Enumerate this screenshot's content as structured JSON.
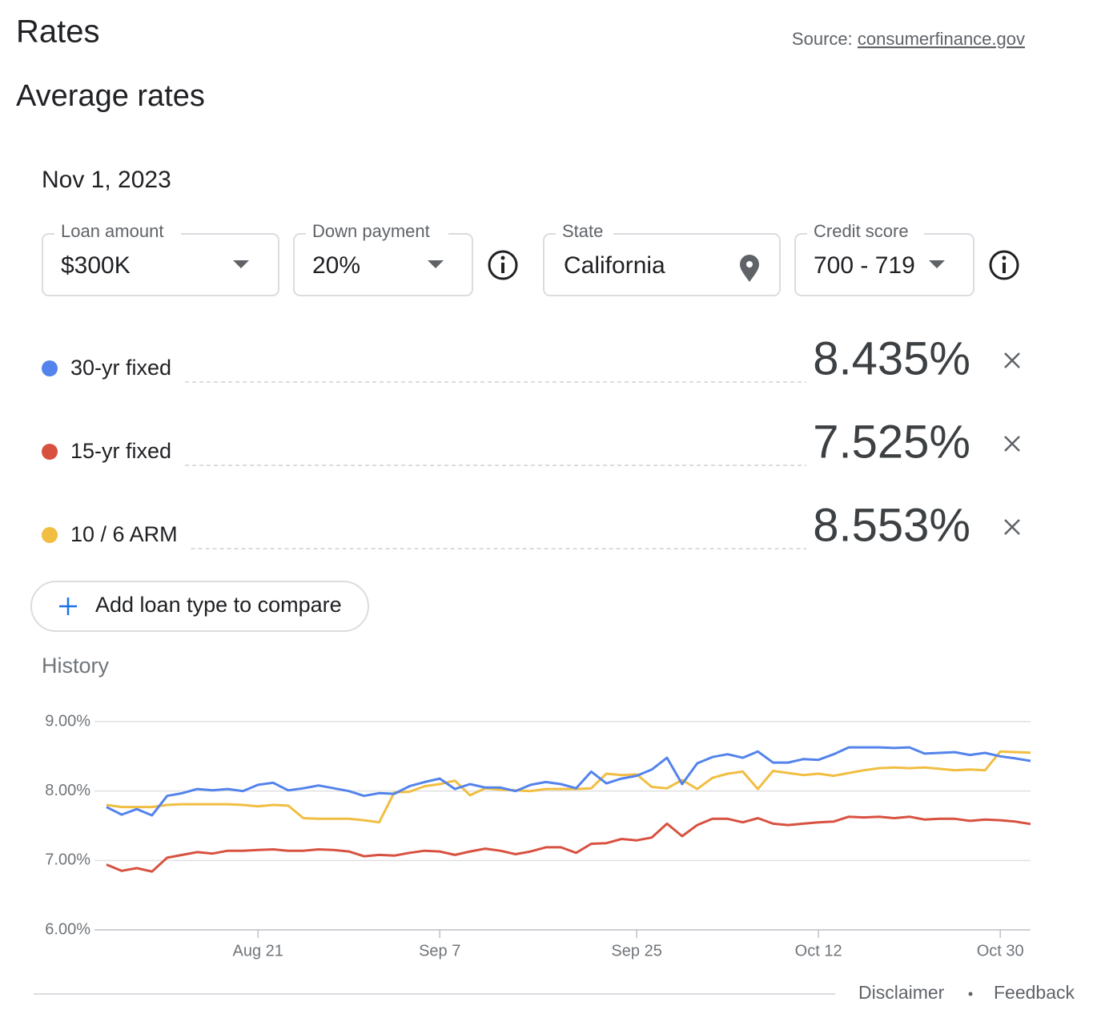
{
  "header": {
    "title": "Rates",
    "source_label": "Source:",
    "source_link": "consumerfinance.gov",
    "subtitle": "Average rates",
    "date": "Nov 1, 2023"
  },
  "filters": [
    {
      "label": "Loan amount",
      "value": "$300K"
    },
    {
      "label": "Down payment",
      "value": "20%"
    },
    {
      "label": "State",
      "value": "California"
    },
    {
      "label": "Credit score",
      "value": "700 - 719"
    }
  ],
  "add_button": "Add loan type to compare",
  "history_label": "History",
  "footer": {
    "disclaimer": "Disclaimer",
    "feedback": "Feedback"
  },
  "chart_data": {
    "type": "line",
    "categories": [
      null,
      null,
      null,
      null,
      null,
      null,
      null,
      null,
      null,
      null,
      "Aug 21",
      null,
      null,
      null,
      null,
      null,
      null,
      null,
      null,
      null,
      null,
      null,
      "Sep 7",
      null,
      null,
      null,
      null,
      null,
      null,
      null,
      null,
      null,
      null,
      null,
      null,
      "Sep 25",
      null,
      null,
      null,
      null,
      null,
      null,
      null,
      null,
      null,
      null,
      null,
      "Oct 12",
      null,
      null,
      null,
      null,
      null,
      null,
      null,
      null,
      null,
      null,
      null,
      "Oct 30",
      null,
      null
    ],
    "series": [
      {
        "name": "30-yr fixed",
        "color": "#5383ec",
        "rate": "8.435%",
        "values": [
          7.77,
          7.66,
          7.74,
          7.65,
          7.93,
          7.97,
          8.03,
          8.01,
          8.03,
          8.0,
          8.09,
          8.12,
          8.01,
          8.04,
          8.08,
          8.04,
          8.0,
          7.93,
          7.97,
          7.96,
          8.07,
          8.13,
          8.18,
          8.03,
          8.1,
          8.05,
          8.05,
          8.0,
          8.09,
          8.13,
          8.1,
          8.04,
          8.28,
          8.11,
          8.18,
          8.22,
          8.31,
          8.48,
          8.1,
          8.4,
          8.49,
          8.53,
          8.48,
          8.57,
          8.41,
          8.41,
          8.46,
          8.45,
          8.53,
          8.63,
          8.63,
          8.63,
          8.62,
          8.63,
          8.54,
          8.55,
          8.56,
          8.52,
          8.55,
          8.5,
          8.47,
          8.435
        ]
      },
      {
        "name": "15-yr fixed",
        "color": "#d85140",
        "rate": "7.525%",
        "values": [
          6.94,
          6.85,
          6.89,
          6.84,
          7.04,
          7.08,
          7.12,
          7.1,
          7.14,
          7.14,
          7.15,
          7.16,
          7.14,
          7.14,
          7.16,
          7.15,
          7.13,
          7.06,
          7.08,
          7.07,
          7.11,
          7.14,
          7.13,
          7.08,
          7.13,
          7.17,
          7.14,
          7.09,
          7.13,
          7.19,
          7.19,
          7.11,
          7.24,
          7.25,
          7.31,
          7.29,
          7.33,
          7.53,
          7.35,
          7.51,
          7.6,
          7.6,
          7.55,
          7.61,
          7.53,
          7.51,
          7.53,
          7.55,
          7.56,
          7.63,
          7.62,
          7.63,
          7.61,
          7.63,
          7.59,
          7.6,
          7.6,
          7.57,
          7.59,
          7.58,
          7.56,
          7.525
        ]
      },
      {
        "name": "10 / 6 ARM",
        "color": "#f1be42",
        "rate": "8.553%",
        "values": [
          7.8,
          7.77,
          7.77,
          7.77,
          7.8,
          7.81,
          7.81,
          7.81,
          7.81,
          7.8,
          7.78,
          7.8,
          7.79,
          7.61,
          7.6,
          7.6,
          7.6,
          7.58,
          7.55,
          7.98,
          7.99,
          8.07,
          8.1,
          8.15,
          7.94,
          8.04,
          8.02,
          8.01,
          8.0,
          8.03,
          8.03,
          8.03,
          8.04,
          8.25,
          8.23,
          8.24,
          8.06,
          8.04,
          8.16,
          8.03,
          8.19,
          8.25,
          8.28,
          8.03,
          8.29,
          8.26,
          8.23,
          8.25,
          8.22,
          8.26,
          8.3,
          8.33,
          8.34,
          8.33,
          8.34,
          8.32,
          8.3,
          8.31,
          8.3,
          8.57,
          8.56,
          8.553
        ]
      }
    ],
    "ylim": [
      6,
      9
    ],
    "yticks": [
      {
        "value": 6,
        "label": "6.00%"
      },
      {
        "value": 7,
        "label": "7.00%"
      },
      {
        "value": 8,
        "label": "8.00%"
      },
      {
        "value": 9,
        "label": "9.00%"
      }
    ],
    "grid": true
  }
}
